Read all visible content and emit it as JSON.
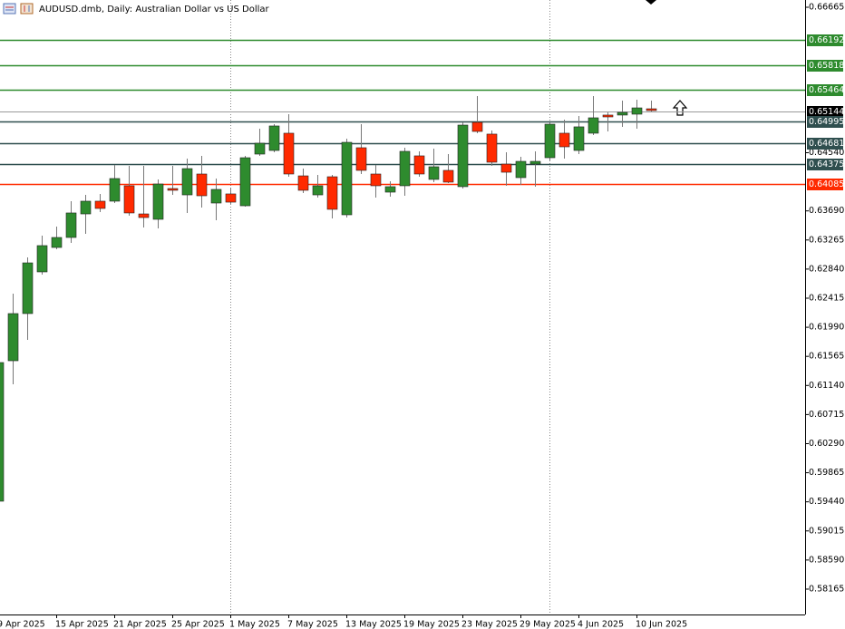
{
  "chart_data": {
    "type": "candlestick",
    "title": "AUDUSD.dmb, Daily:  Australian Dollar vs US Dollar",
    "x": [
      "9 Apr 2025",
      null,
      null,
      null,
      "15 Apr 2025",
      null,
      null,
      null,
      "21 Apr 2025",
      null,
      null,
      null,
      "25 Apr 2025",
      null,
      null,
      null,
      "1 May 2025",
      null,
      null,
      null,
      "7 May 2025",
      null,
      null,
      null,
      "13 May 2025",
      null,
      null,
      null,
      "19 May 2025",
      null,
      null,
      null,
      "23 May 2025",
      null,
      null,
      null,
      "29 May 2025",
      null,
      null,
      null,
      "4 Jun 2025",
      null,
      null,
      null,
      "10 Jun 2025",
      null
    ],
    "open": [
      0.59449,
      0.61501,
      0.6219,
      0.62799,
      0.63156,
      0.63302,
      0.63646,
      0.63832,
      0.63832,
      0.64057,
      0.63646,
      0.63567,
      0.64017,
      0.63924,
      0.64229,
      0.63805,
      0.63938,
      0.63765,
      0.6452,
      0.64573,
      0.64825,
      0.64202,
      0.63924,
      0.64189,
      0.63633,
      0.64613,
      0.64229,
      0.63964,
      0.64057,
      0.64494,
      0.6415,
      0.64282,
      0.64044,
      0.64984,
      0.64812,
      0.64374,
      0.64176,
      0.64374,
      0.64467,
      0.64825,
      0.64573,
      0.64825,
      0.6509,
      0.6509,
      0.65103,
      0.65182
    ],
    "high": [
      0.61501,
      0.62481,
      0.63011,
      0.63329,
      0.63461,
      0.63832,
      0.63924,
      0.63938,
      0.64361,
      0.64348,
      0.64348,
      0.6415,
      0.64348,
      0.64454,
      0.64494,
      0.64163,
      0.6403,
      0.64494,
      0.64891,
      0.64957,
      0.65103,
      0.64308,
      0.64216,
      0.64216,
      0.64745,
      0.64957,
      0.64361,
      0.64123,
      0.64613,
      0.6456,
      0.646,
      0.6452,
      0.64984,
      0.65368,
      0.64865,
      0.64546,
      0.64481,
      0.6456,
      0.6497,
      0.65023,
      0.65076,
      0.65368,
      0.65129,
      0.65301,
      0.65315,
      0.65301
    ],
    "low": [
      0.59423,
      0.61157,
      0.61806,
      0.62759,
      0.6313,
      0.63223,
      0.63355,
      0.63673,
      0.63805,
      0.6362,
      0.63448,
      0.63435,
      0.63924,
      0.6366,
      0.63739,
      0.63554,
      0.63792,
      0.63752,
      0.64494,
      0.64546,
      0.64189,
      0.63951,
      0.63885,
      0.6358,
      0.63593,
      0.64229,
      0.63885,
      0.63898,
      0.63911,
      0.64189,
      0.6411,
      0.64097,
      0.64017,
      0.64825,
      0.64348,
      0.64057,
      0.6407,
      0.64044,
      0.64427,
      0.64454,
      0.6452,
      0.64798,
      0.64851,
      0.64918,
      0.64891,
      0.65142
    ],
    "close": [
      0.61475,
      0.6219,
      0.62931,
      0.63183,
      0.63302,
      0.6366,
      0.63832,
      0.63726,
      0.64163,
      0.6366,
      0.63593,
      0.64083,
      0.63991,
      0.64308,
      0.63911,
      0.64004,
      0.63818,
      0.64467,
      0.64679,
      0.64931,
      0.64229,
      0.63991,
      0.64057,
      0.63713,
      0.64692,
      0.64282,
      0.64057,
      0.64044,
      0.6456,
      0.64229,
      0.64335,
      0.6411,
      0.64944,
      0.64851,
      0.64401,
      0.64255,
      0.64414,
      0.64414,
      0.64957,
      0.64626,
      0.64918,
      0.6505,
      0.65063,
      0.65129,
      0.65195,
      0.65156
    ],
    "up_color": "#2e8b2e",
    "down_color": "#ff2a00",
    "ylim": [
      0.57794,
      0.66771
    ],
    "yticks": [
      0.66665,
      {
        "value": 0.6454,
        "label": "0.64540"
      },
      {
        "value": 0.6369,
        "label": "0.63690"
      },
      0.63265,
      {
        "value": 0.6284,
        "label": "0.62840"
      },
      0.62415,
      {
        "value": 0.6199,
        "label": "0.61990"
      },
      0.61565,
      {
        "value": 0.6114,
        "label": "0.61140"
      },
      0.60715,
      {
        "value": 0.6029,
        "label": "0.60290"
      },
      0.59865,
      {
        "value": 0.5944,
        "label": "0.59440"
      },
      0.59015,
      {
        "value": 0.5859,
        "label": "0.58590"
      },
      0.58165
    ],
    "levels": [
      {
        "value": 0.66192,
        "color": "#2e8b2e"
      },
      {
        "value": 0.65818,
        "color": "#2e8b2e"
      },
      {
        "value": 0.65464,
        "color": "#2e8b2e"
      },
      {
        "value": 0.65144,
        "color": "#9a9a9a"
      },
      {
        "value": 0.64995,
        "color": "#2f4f4f"
      },
      {
        "value": 0.64681,
        "color": "#2f4f4f"
      },
      {
        "value": 0.64375,
        "color": "#2f4f4f"
      },
      {
        "value": 0.64085,
        "color": "#ff2a00"
      }
    ]
  }
}
